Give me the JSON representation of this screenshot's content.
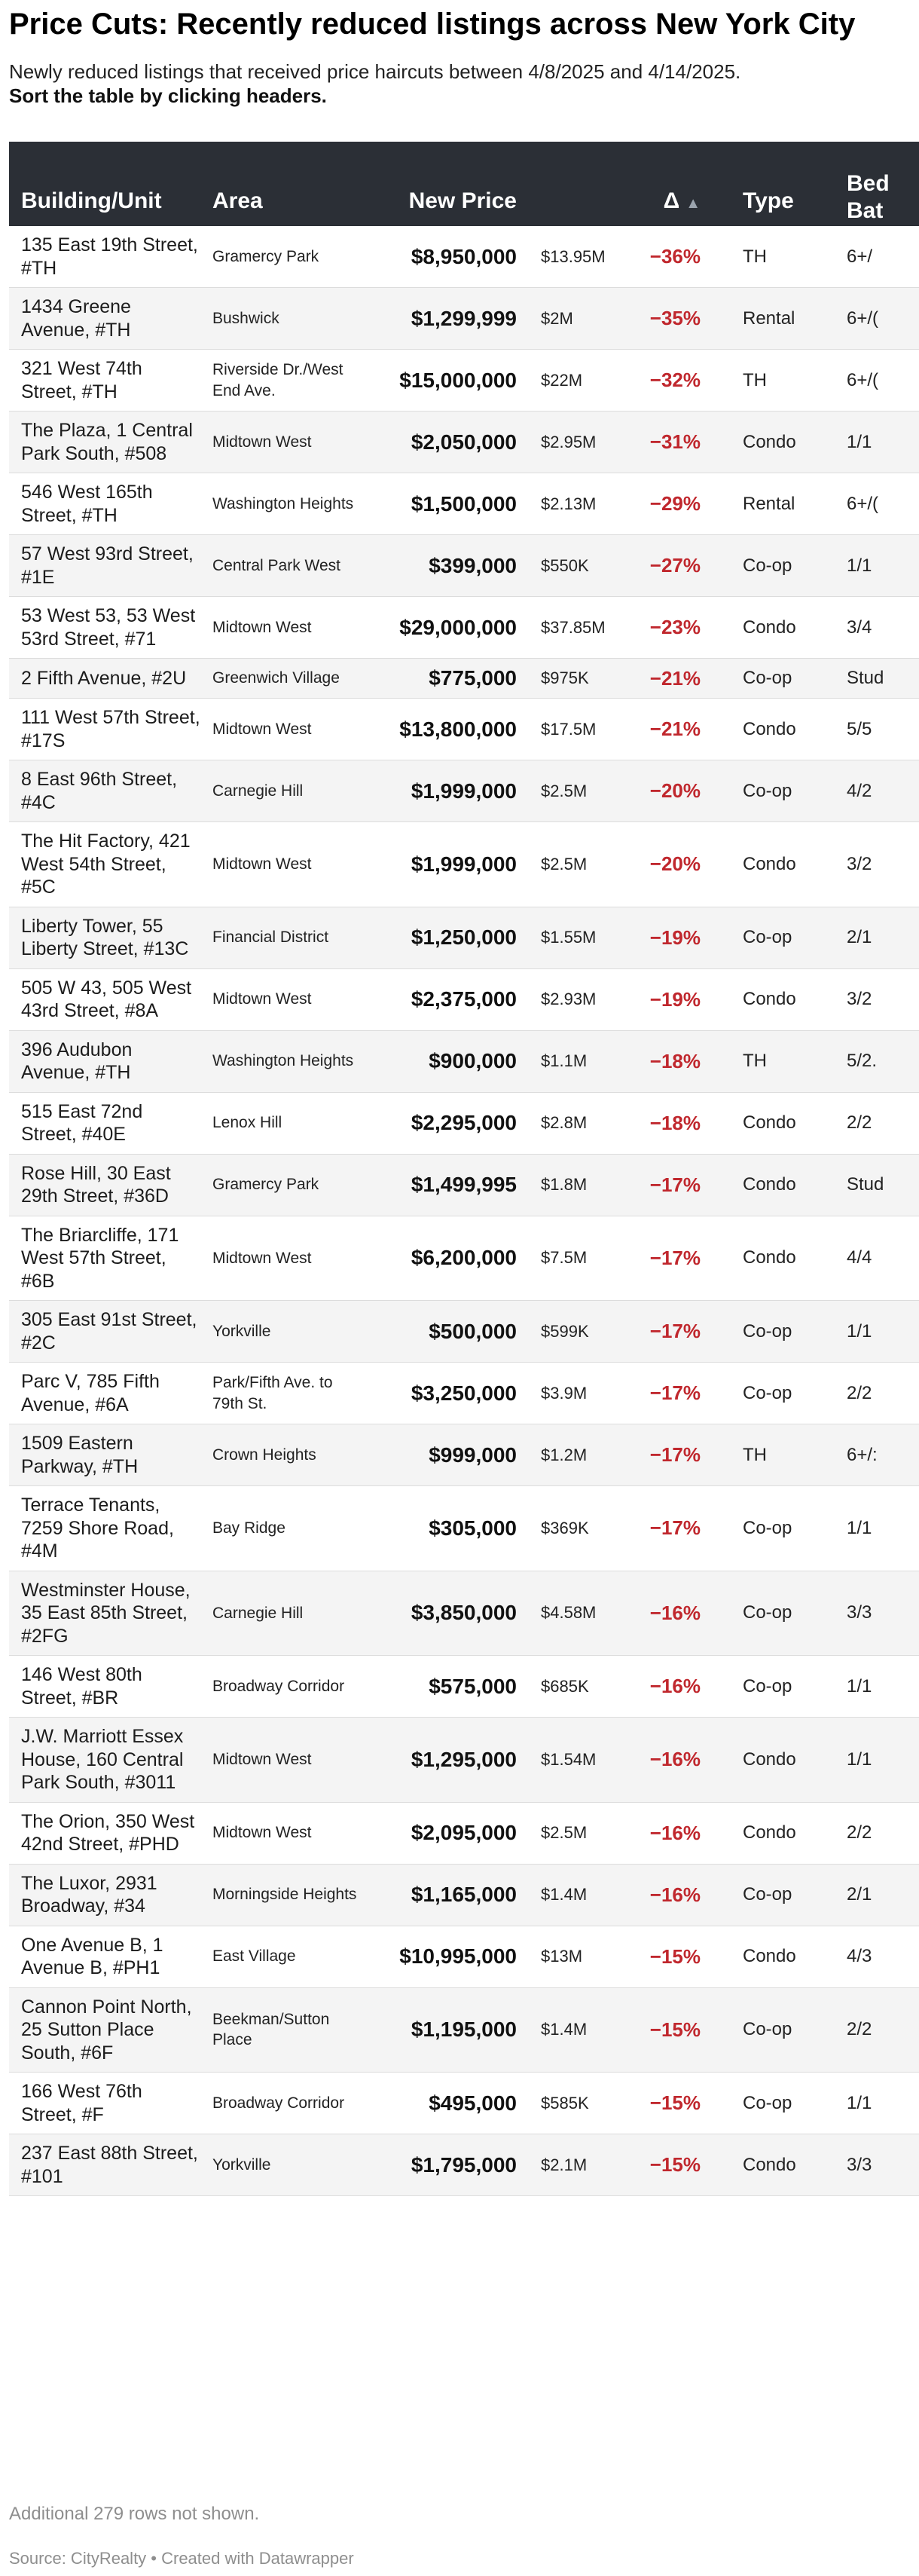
{
  "header": {
    "title": "Price Cuts: Recently reduced listings across New York City",
    "subtitle": "Newly reduced listings that received price haircuts between 4/8/2025 and 4/14/2025.",
    "subtitle_bold": "Sort the table by clicking headers."
  },
  "chart_data": {
    "type": "table",
    "columns": {
      "building": "Building/Unit",
      "area": "Area",
      "new_price": "New Price",
      "old_price": "",
      "delta": "Δ",
      "type": "Type",
      "bed_bath_line1": "Bed",
      "bed_bath_line2": "Bat"
    },
    "sort_indicator": "▲",
    "rows": [
      {
        "building": "135 East 19th Street, #TH",
        "area": "Gramercy Park",
        "new_price": "$8,950,000",
        "old_price": "$13.95M",
        "delta": "−36%",
        "type": "TH",
        "bed_bath": "6+/"
      },
      {
        "building": "1434 Greene Avenue, #TH",
        "area": "Bushwick",
        "new_price": "$1,299,999",
        "old_price": "$2M",
        "delta": "−35%",
        "type": "Rental",
        "bed_bath": "6+/("
      },
      {
        "building": "321 West 74th Street, #TH",
        "area": "Riverside Dr./West End Ave.",
        "new_price": "$15,000,000",
        "old_price": "$22M",
        "delta": "−32%",
        "type": "TH",
        "bed_bath": "6+/("
      },
      {
        "building": "The Plaza, 1 Central Park South, #508",
        "area": "Midtown West",
        "new_price": "$2,050,000",
        "old_price": "$2.95M",
        "delta": "−31%",
        "type": "Condo",
        "bed_bath": "1/1"
      },
      {
        "building": "546 West 165th Street, #TH",
        "area": "Washington Heights",
        "new_price": "$1,500,000",
        "old_price": "$2.13M",
        "delta": "−29%",
        "type": "Rental",
        "bed_bath": "6+/("
      },
      {
        "building": "57 West 93rd Street, #1E",
        "area": "Central Park West",
        "new_price": "$399,000",
        "old_price": "$550K",
        "delta": "−27%",
        "type": "Co-op",
        "bed_bath": "1/1"
      },
      {
        "building": "53 West 53, 53 West 53rd Street, #71",
        "area": "Midtown West",
        "new_price": "$29,000,000",
        "old_price": "$37.85M",
        "delta": "−23%",
        "type": "Condo",
        "bed_bath": "3/4"
      },
      {
        "building": "2 Fifth Avenue, #2U",
        "area": "Greenwich Village",
        "new_price": "$775,000",
        "old_price": "$975K",
        "delta": "−21%",
        "type": "Co-op",
        "bed_bath": "Stud"
      },
      {
        "building": "111 West 57th Street, #17S",
        "area": "Midtown West",
        "new_price": "$13,800,000",
        "old_price": "$17.5M",
        "delta": "−21%",
        "type": "Condo",
        "bed_bath": "5/5"
      },
      {
        "building": "8 East 96th Street, #4C",
        "area": "Carnegie Hill",
        "new_price": "$1,999,000",
        "old_price": "$2.5M",
        "delta": "−20%",
        "type": "Co-op",
        "bed_bath": "4/2"
      },
      {
        "building": "The Hit Factory, 421 West 54th Street, #5C",
        "area": "Midtown West",
        "new_price": "$1,999,000",
        "old_price": "$2.5M",
        "delta": "−20%",
        "type": "Condo",
        "bed_bath": "3/2"
      },
      {
        "building": "Liberty Tower, 55 Liberty Street, #13C",
        "area": "Financial District",
        "new_price": "$1,250,000",
        "old_price": "$1.55M",
        "delta": "−19%",
        "type": "Co-op",
        "bed_bath": "2/1"
      },
      {
        "building": "505 W 43, 505 West 43rd Street, #8A",
        "area": "Midtown West",
        "new_price": "$2,375,000",
        "old_price": "$2.93M",
        "delta": "−19%",
        "type": "Condo",
        "bed_bath": "3/2"
      },
      {
        "building": "396 Audubon Avenue, #TH",
        "area": "Washington Heights",
        "new_price": "$900,000",
        "old_price": "$1.1M",
        "delta": "−18%",
        "type": "TH",
        "bed_bath": "5/2."
      },
      {
        "building": "515 East 72nd Street, #40E",
        "area": "Lenox Hill",
        "new_price": "$2,295,000",
        "old_price": "$2.8M",
        "delta": "−18%",
        "type": "Condo",
        "bed_bath": "2/2"
      },
      {
        "building": "Rose Hill, 30 East 29th Street, #36D",
        "area": "Gramercy Park",
        "new_price": "$1,499,995",
        "old_price": "$1.8M",
        "delta": "−17%",
        "type": "Condo",
        "bed_bath": "Stud"
      },
      {
        "building": "The Briarcliffe, 171 West 57th Street, #6B",
        "area": "Midtown West",
        "new_price": "$6,200,000",
        "old_price": "$7.5M",
        "delta": "−17%",
        "type": "Condo",
        "bed_bath": "4/4"
      },
      {
        "building": "305 East 91st Street, #2C",
        "area": "Yorkville",
        "new_price": "$500,000",
        "old_price": "$599K",
        "delta": "−17%",
        "type": "Co-op",
        "bed_bath": "1/1"
      },
      {
        "building": "Parc V, 785 Fifth Avenue, #6A",
        "area": "Park/Fifth Ave. to 79th St.",
        "new_price": "$3,250,000",
        "old_price": "$3.9M",
        "delta": "−17%",
        "type": "Co-op",
        "bed_bath": "2/2"
      },
      {
        "building": "1509 Eastern Parkway, #TH",
        "area": "Crown Heights",
        "new_price": "$999,000",
        "old_price": "$1.2M",
        "delta": "−17%",
        "type": "TH",
        "bed_bath": "6+/:"
      },
      {
        "building": "Terrace Tenants, 7259 Shore Road, #4M",
        "area": "Bay Ridge",
        "new_price": "$305,000",
        "old_price": "$369K",
        "delta": "−17%",
        "type": "Co-op",
        "bed_bath": "1/1"
      },
      {
        "building": "Westminster House, 35 East 85th Street, #2FG",
        "area": "Carnegie Hill",
        "new_price": "$3,850,000",
        "old_price": "$4.58M",
        "delta": "−16%",
        "type": "Co-op",
        "bed_bath": "3/3"
      },
      {
        "building": "146 West 80th Street, #BR",
        "area": "Broadway Corridor",
        "new_price": "$575,000",
        "old_price": "$685K",
        "delta": "−16%",
        "type": "Co-op",
        "bed_bath": "1/1"
      },
      {
        "building": "J.W. Marriott Essex House, 160 Central Park South, #3011",
        "area": "Midtown West",
        "new_price": "$1,295,000",
        "old_price": "$1.54M",
        "delta": "−16%",
        "type": "Condo",
        "bed_bath": "1/1"
      },
      {
        "building": "The Orion, 350 West 42nd Street, #PHD",
        "area": "Midtown West",
        "new_price": "$2,095,000",
        "old_price": "$2.5M",
        "delta": "−16%",
        "type": "Condo",
        "bed_bath": "2/2"
      },
      {
        "building": "The Luxor, 2931 Broadway, #34",
        "area": "Morningside Heights",
        "new_price": "$1,165,000",
        "old_price": "$1.4M",
        "delta": "−16%",
        "type": "Co-op",
        "bed_bath": "2/1"
      },
      {
        "building": "One Avenue B, 1 Avenue B, #PH1",
        "area": "East Village",
        "new_price": "$10,995,000",
        "old_price": "$13M",
        "delta": "−15%",
        "type": "Condo",
        "bed_bath": "4/3"
      },
      {
        "building": "Cannon Point North, 25 Sutton Place South, #6F",
        "area": "Beekman/Sutton Place",
        "new_price": "$1,195,000",
        "old_price": "$1.4M",
        "delta": "−15%",
        "type": "Co-op",
        "bed_bath": "2/2"
      },
      {
        "building": "166 West 76th Street, #F",
        "area": "Broadway Corridor",
        "new_price": "$495,000",
        "old_price": "$585K",
        "delta": "−15%",
        "type": "Co-op",
        "bed_bath": "1/1"
      },
      {
        "building": "237 East 88th Street, #101",
        "area": "Yorkville",
        "new_price": "$1,795,000",
        "old_price": "$2.1M",
        "delta": "−15%",
        "type": "Condo",
        "bed_bath": "3/3"
      }
    ]
  },
  "footer": {
    "rows_not_shown": "Additional 279 rows not shown.",
    "source": "Source: CityRealty • Created with Datawrapper"
  }
}
